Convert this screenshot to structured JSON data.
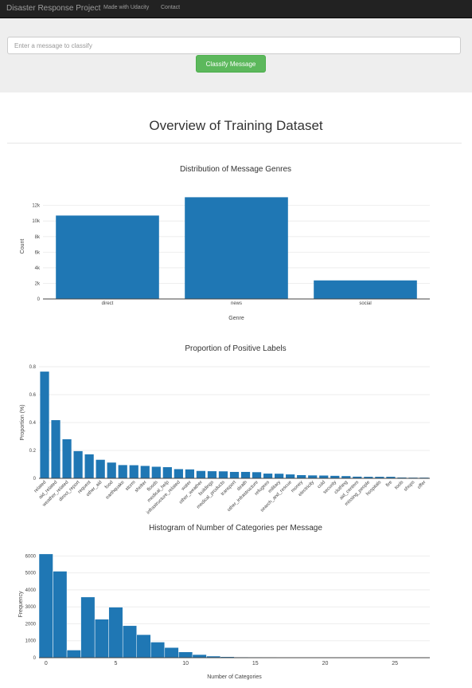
{
  "navbar": {
    "brand": "Disaster Response Project",
    "links": [
      "Made with Udacity",
      "Contact"
    ]
  },
  "form": {
    "placeholder": "Enter a message to classify",
    "button_label": "Classify Message"
  },
  "page_title": "Overview of Training Dataset",
  "colors": {
    "bar": "#1f77b4",
    "navbar": "#222222",
    "button": "#5cb85c"
  },
  "chart_data": [
    {
      "type": "bar",
      "title": "Distribution of Message Genres",
      "xlabel": "Genre",
      "ylabel": "Count",
      "categories": [
        "direct",
        "news",
        "social"
      ],
      "values": [
        10700,
        13050,
        2380
      ],
      "ylim": [
        0,
        13500
      ],
      "yticks": [
        0,
        2000,
        4000,
        6000,
        8000,
        10000,
        12000
      ],
      "ytick_labels": [
        "0",
        "2k",
        "4k",
        "6k",
        "8k",
        "10k",
        "12k"
      ],
      "grid": true
    },
    {
      "type": "bar",
      "title": "Proportion of Positive Labels",
      "xlabel": "",
      "ylabel": "Proportion (%)",
      "categories": [
        "related",
        "aid_related",
        "weather_related",
        "direct_report",
        "request",
        "other_aid",
        "food",
        "earthquake",
        "storm",
        "shelter",
        "floods",
        "medical_help",
        "infrastructure_related",
        "water",
        "other_weather",
        "buildings",
        "medical_products",
        "transport",
        "death",
        "other_infrastructure",
        "refugees",
        "military",
        "search_and_rescue",
        "money",
        "electricity",
        "cold",
        "security",
        "clothing",
        "aid_centers",
        "missing_people",
        "hospitals",
        "fire",
        "tools",
        "shops",
        "offer"
      ],
      "tick_labels": [
        "related",
        "aid_related",
        "weather_related",
        "direct_report",
        "request",
        "other_aid",
        "food",
        "earthquake",
        "storm",
        "shelter",
        "floods",
        "medical_help",
        "infrastructure_related",
        "water",
        "other_weather",
        "buildings",
        "medical_products",
        "transport",
        "death",
        "other_infrastructure",
        "refugees",
        "military",
        "search_and_rescue",
        "money",
        "electricity",
        "cold",
        "security",
        "clothing",
        "aid_centers",
        "missing_people",
        "hospitals",
        "fire",
        "tools",
        "shops",
        "offer"
      ],
      "values": [
        0.765,
        0.417,
        0.28,
        0.195,
        0.172,
        0.133,
        0.113,
        0.095,
        0.094,
        0.089,
        0.083,
        0.08,
        0.066,
        0.064,
        0.053,
        0.051,
        0.05,
        0.046,
        0.046,
        0.044,
        0.034,
        0.033,
        0.028,
        0.023,
        0.021,
        0.02,
        0.018,
        0.016,
        0.012,
        0.011,
        0.011,
        0.011,
        0.006,
        0.005,
        0.005
      ],
      "ylim": [
        0,
        0.8
      ],
      "yticks": [
        0,
        0.2,
        0.4,
        0.6,
        0.8
      ],
      "ytick_labels": [
        "0",
        "0.2",
        "0.4",
        "0.6",
        "0.8"
      ],
      "grid": true
    },
    {
      "type": "bar",
      "title": "Histogram of Number of Categories per Message",
      "xlabel": "Number of Categories",
      "ylabel": "Frequency",
      "x": [
        0,
        1,
        2,
        3,
        4,
        5,
        6,
        7,
        8,
        9,
        10,
        11,
        12,
        13,
        14,
        15,
        16,
        17,
        18,
        19,
        20,
        21,
        22,
        23,
        24,
        25,
        26,
        27
      ],
      "values": [
        6120,
        5100,
        450,
        3580,
        2270,
        2980,
        1890,
        1360,
        920,
        600,
        340,
        185,
        95,
        60,
        40,
        30,
        25,
        20,
        15,
        12,
        10,
        8,
        6,
        5,
        4,
        3,
        2,
        1
      ],
      "xlim": [
        -0.5,
        27.5
      ],
      "xticks": [
        0,
        5,
        10,
        15,
        20,
        25
      ],
      "xtick_labels": [
        "0",
        "5",
        "10",
        "15",
        "20",
        "25"
      ],
      "ylim": [
        0,
        6300
      ],
      "yticks": [
        0,
        1000,
        2000,
        3000,
        4000,
        5000,
        6000
      ],
      "ytick_labels": [
        "0",
        "1000",
        "2000",
        "3000",
        "4000",
        "5000",
        "6000"
      ],
      "grid": true
    }
  ]
}
